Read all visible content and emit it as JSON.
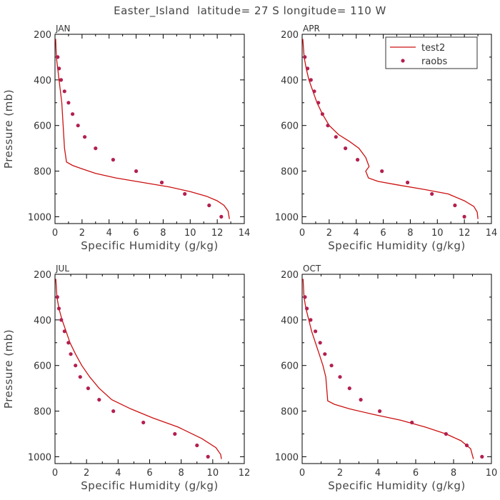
{
  "chart_data": {
    "type": "line",
    "title": "Easter_Island  latitude= 27 S longitude= 110 W",
    "legend": {
      "placement": "top-right of APR panel",
      "entries": [
        {
          "name": "test2",
          "style": "line",
          "color": "#cc1010"
        },
        {
          "name": "raobs",
          "style": "marker",
          "color": "#b3204f"
        }
      ]
    },
    "colors": {
      "model": "#cc1010",
      "obs": "#b3204f"
    },
    "panels": [
      {
        "label": "JAN",
        "xlabel": "Specific Humidity (g/kg)",
        "ylabel": "Pressure (mb)",
        "xlim": [
          0,
          14
        ],
        "xticks": [
          0,
          2,
          4,
          6,
          8,
          10,
          12,
          14
        ],
        "ylim": [
          200,
          1030
        ],
        "yticks": [
          200,
          400,
          600,
          800,
          1000
        ],
        "series": [
          {
            "name": "test2",
            "type": "line",
            "x": [
              0.05,
              0.1,
              0.2,
              0.3,
              0.4,
              0.5,
              0.6,
              0.7,
              0.85,
              1.3,
              2.0,
              3.0,
              4.5,
              6.5,
              8.5,
              10.0,
              11.2,
              12.0,
              12.5,
              12.8,
              12.9
            ],
            "y": [
              220,
              300,
              350,
              400,
              450,
              500,
              600,
              700,
              760,
              775,
              790,
              810,
              830,
              850,
              870,
              890,
              910,
              930,
              950,
              975,
              1010
            ]
          },
          {
            "name": "raobs",
            "type": "scatter",
            "x": [
              0.2,
              0.3,
              0.45,
              0.7,
              1.0,
              1.3,
              1.7,
              2.2,
              3.0,
              4.3,
              6.0,
              7.9,
              9.6,
              11.4,
              12.3
            ],
            "y": [
              300,
              350,
              400,
              450,
              500,
              550,
              600,
              650,
              700,
              750,
              800,
              850,
              900,
              950,
              1000
            ]
          }
        ]
      },
      {
        "label": "APR",
        "xlabel": "Specific Humidity (g/kg)",
        "ylabel": "",
        "xlim": [
          0,
          14
        ],
        "xticks": [
          0,
          2,
          4,
          6,
          8,
          10,
          12,
          14
        ],
        "ylim": [
          200,
          1030
        ],
        "yticks": [
          200,
          400,
          600,
          800,
          1000
        ],
        "series": [
          {
            "name": "test2",
            "type": "line",
            "x": [
              0.05,
              0.15,
              0.3,
              0.5,
              0.8,
              1.1,
              1.5,
              2.0,
              2.7,
              3.5,
              4.2,
              4.7,
              4.95,
              4.7,
              4.9,
              5.6,
              7.0,
              9.0,
              10.8,
              12.0,
              12.7,
              12.95,
              13.0
            ],
            "y": [
              220,
              300,
              350,
              400,
              450,
              500,
              550,
              600,
              640,
              670,
              700,
              740,
              780,
              800,
              830,
              845,
              860,
              880,
              900,
              930,
              955,
              980,
              1010
            ]
          },
          {
            "name": "raobs",
            "type": "scatter",
            "x": [
              0.2,
              0.4,
              0.65,
              0.9,
              1.2,
              1.5,
              1.9,
              2.5,
              3.2,
              4.1,
              5.9,
              7.8,
              9.6,
              11.3,
              12.0
            ],
            "y": [
              300,
              350,
              400,
              450,
              500,
              550,
              600,
              650,
              700,
              750,
              800,
              850,
              900,
              950,
              1000
            ]
          }
        ]
      },
      {
        "label": "JUL",
        "xlabel": "Specific Humidity (g/kg)",
        "ylabel": "Pressure (mb)",
        "xlim": [
          0,
          12
        ],
        "xticks": [
          0,
          2,
          4,
          6,
          8,
          10,
          12
        ],
        "ylim": [
          200,
          1030
        ],
        "yticks": [
          200,
          400,
          600,
          800,
          1000
        ],
        "series": [
          {
            "name": "test2",
            "type": "line",
            "x": [
              0.05,
              0.12,
              0.25,
              0.45,
              0.7,
              0.95,
              1.3,
              1.7,
              2.2,
              2.8,
              3.6,
              4.8,
              6.2,
              7.8,
              9.3,
              10.2,
              10.5,
              10.55
            ],
            "y": [
              220,
              300,
              350,
              400,
              450,
              500,
              550,
              600,
              650,
              700,
              750,
              790,
              830,
              870,
              920,
              960,
              990,
              1010
            ]
          },
          {
            "name": "raobs",
            "type": "scatter",
            "x": [
              0.15,
              0.25,
              0.4,
              0.6,
              0.85,
              1.0,
              1.3,
              1.6,
              2.1,
              2.8,
              3.7,
              5.6,
              7.6,
              9.0,
              9.7
            ],
            "y": [
              300,
              350,
              400,
              450,
              500,
              550,
              600,
              650,
              700,
              750,
              800,
              850,
              900,
              950,
              1000
            ]
          }
        ]
      },
      {
        "label": "OCT",
        "xlabel": "Specific Humidity (g/kg)",
        "ylabel": "",
        "xlim": [
          0,
          10
        ],
        "xticks": [
          0,
          2,
          4,
          6,
          8,
          10
        ],
        "ylim": [
          200,
          1030
        ],
        "yticks": [
          200,
          400,
          600,
          800,
          1000
        ],
        "series": [
          {
            "name": "test2",
            "type": "line",
            "x": [
              0.05,
              0.1,
              0.2,
              0.35,
              0.5,
              0.7,
              0.9,
              1.1,
              1.25,
              1.3,
              1.35,
              1.7,
              2.5,
              3.8,
              5.2,
              6.5,
              7.6,
              8.4,
              8.9,
              9.05
            ],
            "y": [
              220,
              300,
              350,
              400,
              450,
              500,
              550,
              600,
              650,
              700,
              755,
              770,
              790,
              815,
              840,
              870,
              900,
              930,
              965,
              1010
            ]
          },
          {
            "name": "raobs",
            "type": "scatter",
            "x": [
              0.15,
              0.25,
              0.45,
              0.7,
              0.95,
              1.2,
              1.55,
              2.0,
              2.5,
              3.1,
              4.1,
              5.8,
              7.6,
              8.7,
              9.5
            ],
            "y": [
              300,
              350,
              400,
              450,
              500,
              550,
              600,
              650,
              700,
              750,
              800,
              850,
              900,
              950,
              1000
            ]
          }
        ]
      }
    ]
  }
}
